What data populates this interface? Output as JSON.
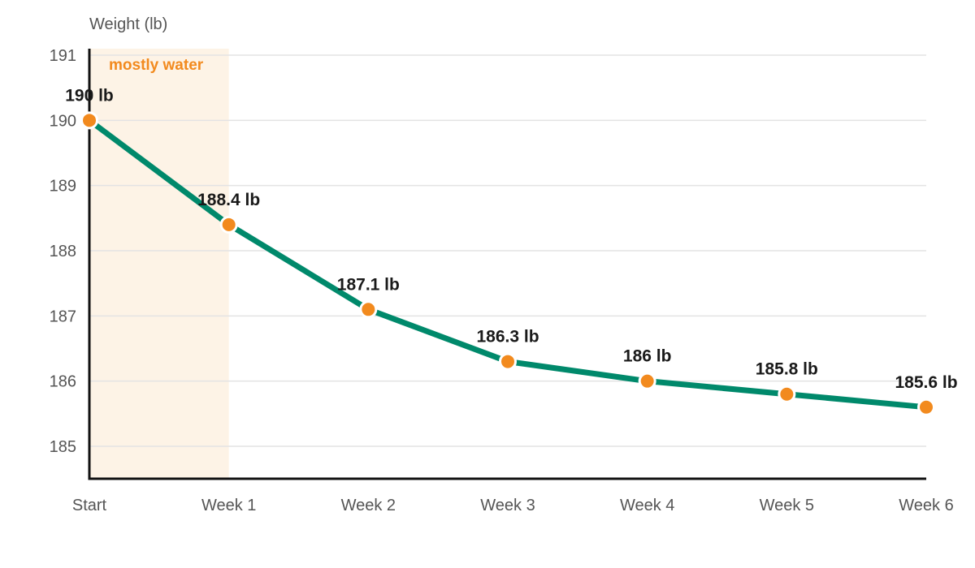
{
  "chart_data": {
    "type": "line",
    "title": "",
    "ylabel": "Weight (lb)",
    "xlabel": "",
    "categories": [
      "Start",
      "Week 1",
      "Week 2",
      "Week 3",
      "Week 4",
      "Week 5",
      "Week 6"
    ],
    "series": [
      {
        "values": [
          190,
          188.4,
          187.1,
          186.3,
          186,
          185.8,
          185.6
        ],
        "data_labels": [
          "190 lb",
          "188.4 lb",
          "187.1 lb",
          "186.3 lb",
          "186 lb",
          "185.8 lb",
          "185.6 lb"
        ]
      }
    ],
    "ylim": [
      184.5,
      191.1
    ],
    "yticks": [
      185,
      186,
      187,
      188,
      189,
      190,
      191
    ],
    "grid": true,
    "annotation": {
      "text": "mostly water",
      "x_start": "Start",
      "x_end": "Week 1"
    },
    "colors": {
      "line": "#00896b",
      "marker": "#f28a1e",
      "marker_stroke": "#ffffff",
      "annotation_fill": "#fdf3e6",
      "annotation_text": "#f28a1e",
      "grid": "#e3e3e3",
      "axis": "#111111"
    }
  }
}
